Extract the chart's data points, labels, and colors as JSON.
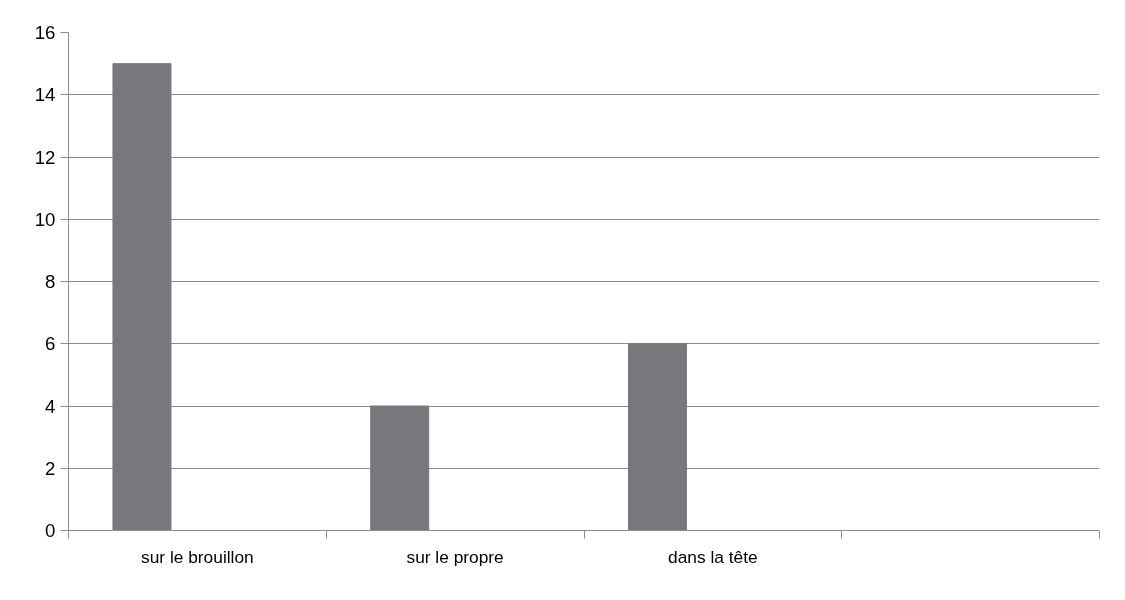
{
  "chart_data": {
    "type": "bar",
    "categories": [
      "sur le brouillon",
      "sur le propre",
      "dans la tête",
      null
    ],
    "values": [
      15,
      4,
      6,
      null
    ],
    "color": "#77787b",
    "ylim": [
      0,
      16
    ],
    "yticks": [
      0,
      2,
      4,
      6,
      8,
      10,
      12,
      14,
      16
    ],
    "grid": "y"
  }
}
